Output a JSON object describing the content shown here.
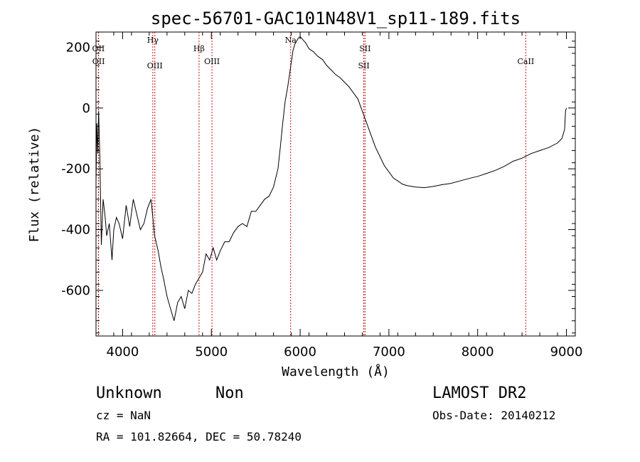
{
  "chart_data": {
    "type": "line",
    "title": "spec-56701-GAC101N48V1_sp11-189.fits",
    "xlabel": "Wavelength (Å)",
    "ylabel": "Flux (relative)",
    "xlim": [
      3700,
      9100
    ],
    "ylim": [
      -750,
      250
    ],
    "xticks": [
      4000,
      5000,
      6000,
      7000,
      8000,
      9000
    ],
    "yticks": [
      -600,
      -400,
      -200,
      0,
      200
    ],
    "grid": false,
    "series": [
      {
        "x": [
          3700,
          3710,
          3720,
          3730,
          3745,
          3760,
          3780,
          3800,
          3820,
          3850,
          3880,
          3900,
          3930,
          3960,
          4000,
          4040,
          4080,
          4120,
          4160,
          4200,
          4240,
          4280,
          4320,
          4360,
          4400,
          4430,
          4460,
          4500,
          4540,
          4580,
          4620,
          4660,
          4700,
          4740,
          4780,
          4820,
          4860,
          4900,
          4940,
          4980,
          5020,
          5060,
          5100,
          5150,
          5200,
          5250,
          5300,
          5350,
          5400,
          5450,
          5500,
          5550,
          5600,
          5650,
          5700,
          5750,
          5780,
          5800,
          5830,
          5860,
          5880,
          5900,
          5920,
          5940,
          5960,
          5980,
          6000,
          6030,
          6060,
          6100,
          6150,
          6200,
          6250,
          6300,
          6350,
          6400,
          6450,
          6500,
          6550,
          6600,
          6650,
          6700,
          6750,
          6800,
          6850,
          6900,
          6950,
          7000,
          7050,
          7100,
          7150,
          7200,
          7300,
          7400,
          7500,
          7600,
          7700,
          7800,
          7900,
          8000,
          8100,
          8200,
          8300,
          8400,
          8500,
          8600,
          8700,
          8800,
          8900,
          8950,
          8980,
          8990,
          9000
        ],
        "y": [
          -250,
          -50,
          -150,
          -10,
          -180,
          -450,
          -300,
          -350,
          -420,
          -380,
          -500,
          -400,
          -360,
          -380,
          -430,
          -320,
          -390,
          -300,
          -350,
          -400,
          -380,
          -330,
          -300,
          -420,
          -470,
          -520,
          -560,
          -620,
          -660,
          -700,
          -640,
          -620,
          -660,
          -600,
          -610,
          -580,
          -560,
          -540,
          -480,
          -500,
          -460,
          -500,
          -470,
          -440,
          -440,
          -410,
          -390,
          -380,
          -390,
          -340,
          -340,
          -320,
          -300,
          -290,
          -260,
          -200,
          -120,
          -60,
          20,
          70,
          110,
          150,
          190,
          210,
          220,
          230,
          235,
          225,
          215,
          195,
          185,
          170,
          160,
          140,
          125,
          110,
          100,
          85,
          70,
          50,
          30,
          -10,
          -50,
          -90,
          -130,
          -160,
          -190,
          -210,
          -230,
          -240,
          -250,
          -255,
          -260,
          -262,
          -258,
          -252,
          -248,
          -240,
          -232,
          -225,
          -215,
          -205,
          -192,
          -175,
          -165,
          -150,
          -140,
          -130,
          -115,
          -100,
          -70,
          -10,
          0
        ]
      }
    ],
    "line_markers": [
      {
        "label": "OII",
        "x": 3727
      },
      {
        "label": "OII",
        "x": 3729
      },
      {
        "label": "Hγ",
        "x": 4340
      },
      {
        "label": "OIII",
        "x": 4363
      },
      {
        "label": "Hβ",
        "x": 4861
      },
      {
        "label": "OIII",
        "x": 5007
      },
      {
        "label": "Na",
        "x": 5893
      },
      {
        "label": "SII",
        "x": 6717
      },
      {
        "label": "SII",
        "x": 6731
      },
      {
        "label": "CaII",
        "x": 8542
      }
    ]
  },
  "info": {
    "class": "Unknown",
    "subclass": "Non",
    "survey": "LAMOST DR2",
    "cz": "cz = NaN",
    "obs_date": "Obs-Date: 20140212",
    "coords": "RA = 101.82664, DEC =  50.78240"
  },
  "colors": {
    "spectrum": "#000000",
    "marker": "#c01010",
    "background": "#ffffff"
  }
}
